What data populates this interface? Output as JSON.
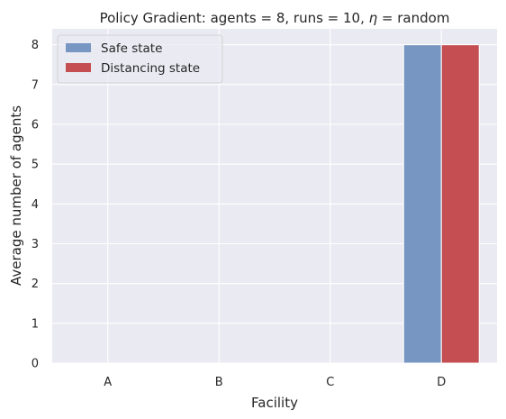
{
  "chart_data": {
    "type": "bar",
    "title": "Policy Gradient: agents = 8, runs = 10, η = random",
    "xlabel": "Facility",
    "ylabel": "Average number of agents",
    "categories": [
      "A",
      "B",
      "C",
      "D"
    ],
    "series": [
      {
        "name": "Safe state",
        "values": [
          0,
          0,
          0,
          8
        ],
        "color": "#7896c2"
      },
      {
        "name": "Distancing state",
        "values": [
          0,
          0,
          0,
          8
        ],
        "color": "#c44e52"
      }
    ],
    "ylim": [
      0,
      8.4
    ],
    "yticks": [
      0,
      1,
      2,
      3,
      4,
      5,
      6,
      7,
      8
    ],
    "grid": true,
    "legend": "top-left",
    "background": "#eaeaf2",
    "grid_color": "#ffffff"
  }
}
